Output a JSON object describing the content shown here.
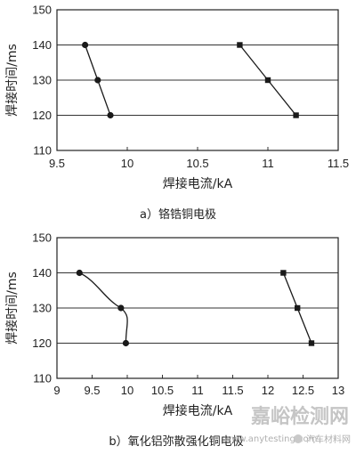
{
  "chart_data": [
    {
      "type": "line",
      "caption": "a）铬锆铜电极",
      "xlabel": "焊接电流/kA",
      "ylabel": "焊接时间/ms",
      "xlim": [
        9.5,
        11.5
      ],
      "ylim": [
        110,
        150
      ],
      "xticks": [
        "9.5",
        "10",
        "10.5",
        "11",
        "11.5"
      ],
      "yticks": [
        "110",
        "120",
        "130",
        "140",
        "150"
      ],
      "grid": "horizontal",
      "series": [
        {
          "marker": "circle",
          "color": "#1a1a1a",
          "curve": "straight",
          "points": [
            [
              9.7,
              140
            ],
            [
              9.79,
              130
            ],
            [
              9.88,
              120
            ]
          ]
        },
        {
          "marker": "square",
          "color": "#1a1a1a",
          "curve": "straight",
          "points": [
            [
              10.8,
              140
            ],
            [
              11.0,
              130
            ],
            [
              11.2,
              120
            ]
          ]
        }
      ]
    },
    {
      "type": "line",
      "caption": "b）氧化铝弥散强化铜电极",
      "xlabel": "焊接电流/kA",
      "ylabel": "焊接时间/ms",
      "xlim": [
        9,
        13
      ],
      "ylim": [
        110,
        150
      ],
      "xticks": [
        "9",
        "9.5",
        "10",
        "10.5",
        "11",
        "11.5",
        "12",
        "12.5",
        "13"
      ],
      "yticks": [
        "110",
        "120",
        "130",
        "140",
        "150"
      ],
      "grid": "horizontal",
      "series": [
        {
          "marker": "circle",
          "color": "#1a1a1a",
          "curve": "smooth",
          "points": [
            [
              9.32,
              140
            ],
            [
              9.91,
              130
            ],
            [
              9.98,
              120
            ]
          ]
        },
        {
          "marker": "square",
          "color": "#1a1a1a",
          "curve": "straight",
          "points": [
            [
              12.22,
              140
            ],
            [
              12.42,
              130
            ],
            [
              12.62,
              120
            ]
          ]
        }
      ]
    }
  ],
  "watermark": {
    "main": "嘉峪检测网",
    "sub": "www.anytesting.com",
    "logo_text": "汽车材料网"
  }
}
